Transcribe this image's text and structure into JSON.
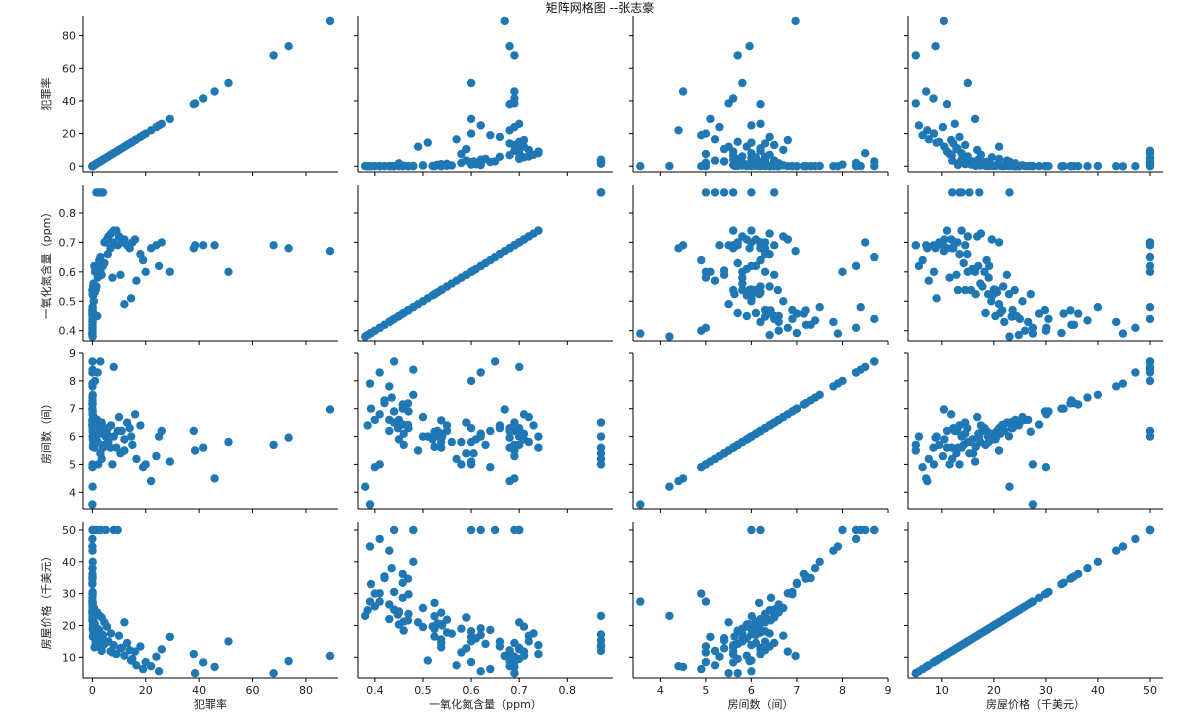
{
  "chart_data": {
    "type": "scatter",
    "title": "矩阵网格图 --张志豪",
    "marker_color": "#1f77b4",
    "variables": [
      {
        "label": "犯罪率",
        "ticks": [
          0,
          20,
          40,
          60,
          80
        ],
        "range": [
          -3.5,
          92
        ]
      },
      {
        "label": "一氧化氮含量（ppm）",
        "ticks": [
          0.4,
          0.5,
          0.6,
          0.7,
          0.8
        ],
        "range": [
          0.365,
          0.895
        ]
      },
      {
        "label": "房间数（间）",
        "ticks": [
          4,
          5,
          6,
          7,
          8,
          9
        ],
        "range": [
          3.4,
          9.0
        ]
      },
      {
        "label": "房屋价格（千美元）",
        "ticks": [
          10,
          20,
          30,
          40,
          50
        ],
        "range": [
          3.5,
          52.5
        ]
      }
    ],
    "records": [
      [
        0.006,
        0.538,
        6.58,
        24.0
      ],
      [
        0.027,
        0.469,
        6.42,
        21.6
      ],
      [
        0.027,
        0.469,
        7.19,
        34.7
      ],
      [
        0.032,
        0.458,
        7.0,
        33.4
      ],
      [
        0.069,
        0.458,
        7.15,
        36.2
      ],
      [
        0.03,
        0.458,
        6.43,
        28.7
      ],
      [
        0.088,
        0.524,
        6.01,
        22.9
      ],
      [
        0.145,
        0.524,
        6.17,
        27.1
      ],
      [
        0.211,
        0.524,
        5.63,
        16.5
      ],
      [
        0.17,
        0.524,
        6.0,
        18.9
      ],
      [
        0.63,
        0.538,
        5.95,
        20.4
      ],
      [
        1.25,
        0.538,
        6.1,
        14.5
      ],
      [
        0.8,
        0.538,
        5.6,
        13.1
      ],
      [
        1.1,
        0.538,
        5.8,
        15.6
      ],
      [
        0.4,
        0.448,
        6.3,
        23.4
      ],
      [
        0.05,
        0.4,
        6.6,
        26.0
      ],
      [
        0.02,
        0.385,
        6.4,
        24.8
      ],
      [
        0.01,
        0.392,
        7.0,
        33.0
      ],
      [
        0.04,
        0.41,
        6.8,
        30.1
      ],
      [
        0.06,
        0.42,
        7.2,
        35.4
      ],
      [
        0.09,
        0.43,
        6.2,
        22.0
      ],
      [
        0.12,
        0.44,
        6.5,
        25.0
      ],
      [
        0.2,
        0.45,
        5.9,
        20.3
      ],
      [
        0.3,
        0.46,
        6.1,
        21.2
      ],
      [
        0.08,
        0.47,
        6.9,
        29.8
      ],
      [
        0.15,
        0.48,
        7.5,
        40.0
      ],
      [
        0.05,
        0.43,
        7.8,
        43.5
      ],
      [
        0.03,
        0.41,
        8.3,
        47.2
      ],
      [
        0.06,
        0.44,
        8.7,
        50.0
      ],
      [
        0.1,
        0.48,
        8.4,
        50.0
      ],
      [
        0.02,
        0.39,
        7.9,
        44.8
      ],
      [
        0.04,
        0.435,
        7.4,
        38.0
      ],
      [
        0.5,
        0.5,
        6.0,
        19.5
      ],
      [
        1.5,
        0.55,
        6.2,
        17.8
      ],
      [
        2.5,
        0.6,
        6.3,
        18.2
      ],
      [
        3.0,
        0.605,
        5.4,
        16.0
      ],
      [
        2.0,
        0.58,
        5.8,
        19.0
      ],
      [
        3.5,
        0.59,
        6.5,
        22.5
      ],
      [
        4.0,
        0.62,
        6.1,
        17.0
      ],
      [
        4.5,
        0.63,
        5.7,
        14.2
      ],
      [
        2.2,
        0.87,
        5.0,
        13.4
      ],
      [
        3.0,
        0.87,
        5.4,
        15.3
      ],
      [
        1.5,
        0.87,
        6.0,
        17.2
      ],
      [
        4.0,
        0.87,
        5.6,
        13.8
      ],
      [
        2.8,
        0.87,
        6.5,
        23.0
      ],
      [
        3.5,
        0.87,
        5.2,
        12.0
      ],
      [
        1.0,
        0.6,
        8.0,
        50.0
      ],
      [
        2.0,
        0.62,
        8.3,
        50.0
      ],
      [
        3.0,
        0.65,
        8.7,
        50.0
      ],
      [
        5.0,
        0.7,
        6.0,
        50.0
      ],
      [
        8.0,
        0.7,
        8.5,
        50.0
      ],
      [
        9.5,
        0.69,
        6.2,
        50.0
      ],
      [
        4.5,
        0.7,
        6.3,
        21.0
      ],
      [
        5.5,
        0.71,
        6.1,
        19.6
      ],
      [
        6.0,
        0.72,
        5.8,
        15.0
      ],
      [
        7.0,
        0.73,
        6.4,
        17.5
      ],
      [
        8.0,
        0.74,
        6.0,
        13.8
      ],
      [
        9.0,
        0.74,
        5.6,
        11.0
      ],
      [
        10.0,
        0.72,
        6.7,
        16.8
      ],
      [
        11.0,
        0.7,
        6.2,
        13.0
      ],
      [
        12.0,
        0.71,
        5.9,
        10.5
      ],
      [
        13.0,
        0.69,
        6.5,
        14.5
      ],
      [
        14.0,
        0.68,
        6.3,
        12.2
      ],
      [
        15.0,
        0.7,
        5.7,
        9.5
      ],
      [
        16.0,
        0.71,
        6.8,
        11.8
      ],
      [
        18.0,
        0.66,
        6.4,
        13.4
      ],
      [
        20.0,
        0.6,
        5.0,
        8.5
      ],
      [
        22.0,
        0.68,
        4.4,
        7.2
      ],
      [
        24.0,
        0.69,
        5.3,
        10.2
      ],
      [
        26.0,
        0.7,
        6.2,
        12.5
      ],
      [
        29.0,
        0.6,
        5.1,
        16.4
      ],
      [
        38.0,
        0.68,
        6.2,
        11.0
      ],
      [
        38.5,
        0.69,
        5.5,
        5.0
      ],
      [
        41.5,
        0.69,
        5.6,
        8.4
      ],
      [
        45.8,
        0.69,
        4.5,
        7.0
      ],
      [
        51.0,
        0.6,
        5.8,
        15.0
      ],
      [
        67.9,
        0.69,
        5.7,
        5.0
      ],
      [
        73.5,
        0.68,
        5.96,
        8.8
      ],
      [
        89.0,
        0.67,
        6.97,
        10.4
      ],
      [
        0.07,
        0.41,
        5.0,
        27.5
      ],
      [
        0.05,
        0.4,
        4.9,
        30.0
      ],
      [
        0.03,
        0.39,
        3.56,
        27.5
      ],
      [
        0.1,
        0.38,
        4.2,
        23.0
      ],
      [
        12.0,
        0.49,
        5.5,
        21.0
      ],
      [
        14.5,
        0.51,
        6.0,
        9.0
      ],
      [
        16.5,
        0.57,
        5.2,
        7.5
      ],
      [
        19.0,
        0.64,
        4.9,
        6.3
      ],
      [
        25.0,
        0.62,
        6.0,
        5.6
      ],
      [
        10.5,
        0.59,
        5.4,
        12.8
      ],
      [
        7.5,
        0.58,
        5.0,
        11.5
      ],
      [
        1.8,
        0.45,
        6.6,
        24.1
      ],
      [
        0.9,
        0.53,
        6.2,
        20.6
      ],
      [
        0.3,
        0.55,
        6.4,
        21.8
      ],
      [
        0.2,
        0.52,
        5.9,
        19.7
      ],
      [
        0.6,
        0.5,
        6.7,
        25.5
      ],
      [
        0.11,
        0.47,
        6.3,
        23.6
      ],
      [
        0.25,
        0.46,
        5.7,
        18.4
      ],
      [
        0.35,
        0.54,
        6.0,
        20.0
      ],
      [
        0.45,
        0.56,
        5.8,
        17.4
      ],
      [
        0.75,
        0.62,
        6.1,
        19.1
      ],
      [
        1.2,
        0.61,
        5.9,
        15.9
      ],
      [
        2.6,
        0.64,
        6.2,
        18.6
      ],
      [
        5.8,
        0.66,
        6.3,
        14.9
      ],
      [
        6.8,
        0.68,
        5.6,
        11.9
      ],
      [
        0.08,
        0.44,
        6.9,
        30.5
      ],
      [
        0.05,
        0.42,
        7.3,
        34.9
      ],
      [
        0.04,
        0.43,
        6.6,
        26.6
      ],
      [
        0.07,
        0.45,
        6.5,
        24.4
      ]
    ]
  }
}
